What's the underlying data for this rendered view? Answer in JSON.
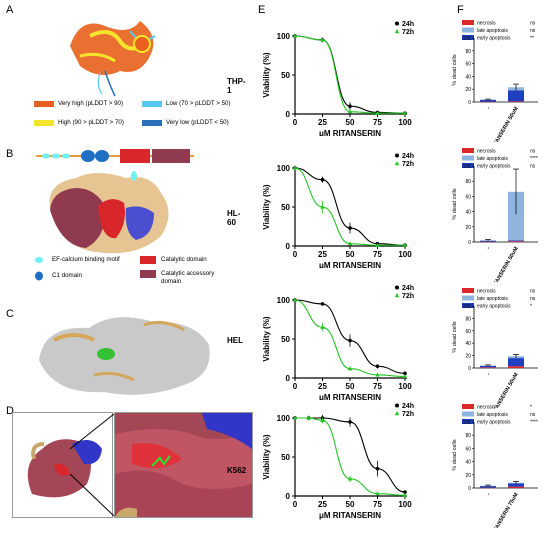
{
  "panels": {
    "A": "A",
    "B": "B",
    "C": "C",
    "D": "D",
    "E": "E",
    "F": "F"
  },
  "plddt_legend": [
    {
      "label": "Very high (pLDDT > 90)",
      "color": "#e8601c"
    },
    {
      "label": "High (90 > pLDDT > 70)",
      "color": "#f5e52a"
    },
    {
      "label": "Low (70 > pLDDT > 50)",
      "color": "#56c7ee"
    },
    {
      "label": "Very low (pLDDT < 50)",
      "color": "#2a6fb8"
    }
  ],
  "domain_legend": [
    {
      "label": "EF-calcium binding motif",
      "color": "#6ff0f5",
      "shape": "ellipse"
    },
    {
      "label": "Catalytic domain",
      "color": "#d9262a",
      "shape": "rect"
    },
    {
      "label": "C1 domain",
      "color": "#1f6ec4",
      "shape": "ellipse"
    },
    {
      "label": "Catalytic accessory domain",
      "color": "#8f3a4f",
      "shape": "rect"
    }
  ],
  "chart_data": [
    {
      "type": "line",
      "cell_line": "THP-1",
      "xlabel": "μM RITANSERIN",
      "ylabel": "Viability (%)",
      "xlim": [
        0,
        100
      ],
      "ylim": [
        0,
        100
      ],
      "xticks": [
        0,
        25,
        50,
        75,
        100
      ],
      "yticks": [
        0,
        50,
        100
      ],
      "series": [
        {
          "name": "24h",
          "color": "#000000",
          "marker": "circle",
          "x": [
            0,
            25,
            50,
            75,
            100
          ],
          "y": [
            100,
            95,
            10,
            2,
            1
          ],
          "err": [
            2,
            3,
            5,
            1,
            1
          ]
        },
        {
          "name": "72h",
          "color": "#22c522",
          "marker": "triangle",
          "x": [
            0,
            25,
            50,
            75,
            100
          ],
          "y": [
            100,
            95,
            3,
            1,
            1
          ],
          "err": [
            2,
            2,
            2,
            1,
            1
          ]
        }
      ]
    },
    {
      "type": "line",
      "cell_line": "HL-60",
      "xlabel": "μM RITANSERIN",
      "ylabel": "Viability (%)",
      "xlim": [
        0,
        100
      ],
      "ylim": [
        0,
        100
      ],
      "xticks": [
        0,
        25,
        50,
        75,
        100
      ],
      "yticks": [
        0,
        50,
        100
      ],
      "series": [
        {
          "name": "24h",
          "color": "#000000",
          "marker": "circle",
          "x": [
            0,
            25,
            50,
            75,
            100
          ],
          "y": [
            100,
            85,
            23,
            3,
            1
          ],
          "err": [
            3,
            4,
            7,
            2,
            1
          ]
        },
        {
          "name": "72h",
          "color": "#22c522",
          "marker": "triangle",
          "x": [
            0,
            25,
            50,
            75,
            100
          ],
          "y": [
            100,
            50,
            3,
            1,
            1
          ],
          "err": [
            3,
            8,
            2,
            1,
            1
          ]
        }
      ]
    },
    {
      "type": "line",
      "cell_line": "HEL",
      "xlabel": "μM RITANSERIN",
      "ylabel": "Viability (%)",
      "xlim": [
        0,
        100
      ],
      "ylim": [
        0,
        100
      ],
      "xticks": [
        0,
        25,
        50,
        75,
        100
      ],
      "yticks": [
        0,
        50,
        100
      ],
      "series": [
        {
          "name": "24h",
          "color": "#000000",
          "marker": "circle",
          "x": [
            0,
            25,
            50,
            75,
            100
          ],
          "y": [
            100,
            95,
            48,
            15,
            6
          ],
          "err": [
            2,
            2,
            8,
            3,
            2
          ]
        },
        {
          "name": "72h",
          "color": "#22c522",
          "marker": "triangle",
          "x": [
            0,
            25,
            50,
            75,
            100
          ],
          "y": [
            100,
            65,
            12,
            4,
            2
          ],
          "err": [
            2,
            5,
            3,
            1,
            1
          ]
        }
      ]
    },
    {
      "type": "line",
      "cell_line": "K562",
      "xlabel": "μM RITANSERIN",
      "ylabel": "Viability (%)",
      "xlim": [
        0,
        100
      ],
      "ylim": [
        0,
        100
      ],
      "xticks": [
        0,
        25,
        50,
        75,
        100
      ],
      "yticks": [
        0,
        50,
        100
      ],
      "series": [
        {
          "name": "24h",
          "color": "#000000",
          "marker": "circle",
          "x": [
            0,
            12.5,
            25,
            50,
            75,
            100
          ],
          "y": [
            100,
            100,
            100,
            95,
            35,
            5
          ],
          "err": [
            2,
            3,
            4,
            6,
            10,
            2
          ]
        },
        {
          "name": "72h",
          "color": "#22c522",
          "marker": "triangle",
          "x": [
            0,
            12.5,
            25,
            50,
            75,
            100
          ],
          "y": [
            100,
            100,
            97,
            22,
            3,
            1
          ],
          "err": [
            2,
            3,
            4,
            4,
            1,
            1
          ]
        }
      ]
    },
    {
      "type": "bar",
      "stacked": true,
      "ylabel": "% dead cells",
      "categories": [
        "-",
        "RITANSERIN 50uM"
      ],
      "yticks": [
        "0",
        "20",
        "40",
        "60",
        "80",
        "100"
      ],
      "legend": [
        {
          "name": "necrosis",
          "sig": "ns",
          "color": "#d9262a"
        },
        {
          "name": "late apoptosis",
          "sig": "ns",
          "color": "#8fb4dd"
        },
        {
          "name": "early apoptosis",
          "sig": "**",
          "color": "#1f3fbf"
        }
      ],
      "series": [
        {
          "name": "necrosis",
          "values": [
            0.5,
            1
          ]
        },
        {
          "name": "early apoptosis",
          "values": [
            3,
            17
          ]
        },
        {
          "name": "late apoptosis",
          "values": [
            0.5,
            5
          ]
        }
      ],
      "err": [
        0.5,
        5
      ]
    },
    {
      "type": "bar",
      "stacked": true,
      "ylabel": "% dead cells",
      "categories": [
        "-",
        "RITANSERIN 50uM"
      ],
      "yticks": [
        "0",
        "20",
        "40",
        "60",
        "80",
        "100"
      ],
      "legend": [
        {
          "name": "necrosis",
          "sig": "ns",
          "color": "#d9262a"
        },
        {
          "name": "late apoptosis",
          "sig": "****",
          "color": "#8fb4dd"
        },
        {
          "name": "early apoptosis",
          "sig": "ns",
          "color": "#1f3fbf"
        }
      ],
      "series": [
        {
          "name": "necrosis",
          "values": [
            0.5,
            1
          ]
        },
        {
          "name": "early apoptosis",
          "values": [
            1,
            1
          ]
        },
        {
          "name": "late apoptosis",
          "values": [
            1,
            64
          ]
        }
      ],
      "err": [
        1,
        30
      ]
    },
    {
      "type": "bar",
      "stacked": true,
      "ylabel": "% dead cells",
      "categories": [
        "-",
        "RITANSERIN 50uM"
      ],
      "yticks": [
        "0",
        "20",
        "40",
        "60",
        "80",
        "100"
      ],
      "legend": [
        {
          "name": "necrosis",
          "sig": "ns",
          "color": "#d9262a"
        },
        {
          "name": "late apoptosis",
          "sig": "ns",
          "color": "#8fb4dd"
        },
        {
          "name": "early apoptosis",
          "sig": "*",
          "color": "#1f3fbf"
        }
      ],
      "series": [
        {
          "name": "necrosis",
          "values": [
            1,
            3
          ]
        },
        {
          "name": "early apoptosis",
          "values": [
            2.5,
            13
          ]
        },
        {
          "name": "late apoptosis",
          "values": [
            0.5,
            3
          ]
        }
      ],
      "err": [
        1,
        3
      ]
    },
    {
      "type": "bar",
      "stacked": true,
      "ylabel": "% dead cells",
      "categories": [
        "-",
        "RITANSERIN 75uM"
      ],
      "yticks": [
        "0",
        "20",
        "40",
        "60",
        "80",
        "100"
      ],
      "legend": [
        {
          "name": "necrosis",
          "sig": "*",
          "color": "#d9262a"
        },
        {
          "name": "late apoptosis",
          "sig": "ns",
          "color": "#8fb4dd"
        },
        {
          "name": "early apoptosis",
          "sig": "****",
          "color": "#1f3fbf"
        }
      ],
      "series": [
        {
          "name": "necrosis",
          "values": [
            0.5,
            2
          ]
        },
        {
          "name": "early apoptosis",
          "values": [
            2.5,
            5
          ]
        },
        {
          "name": "late apoptosis",
          "values": [
            0.5,
            1
          ]
        }
      ],
      "err": [
        1,
        2
      ]
    }
  ]
}
